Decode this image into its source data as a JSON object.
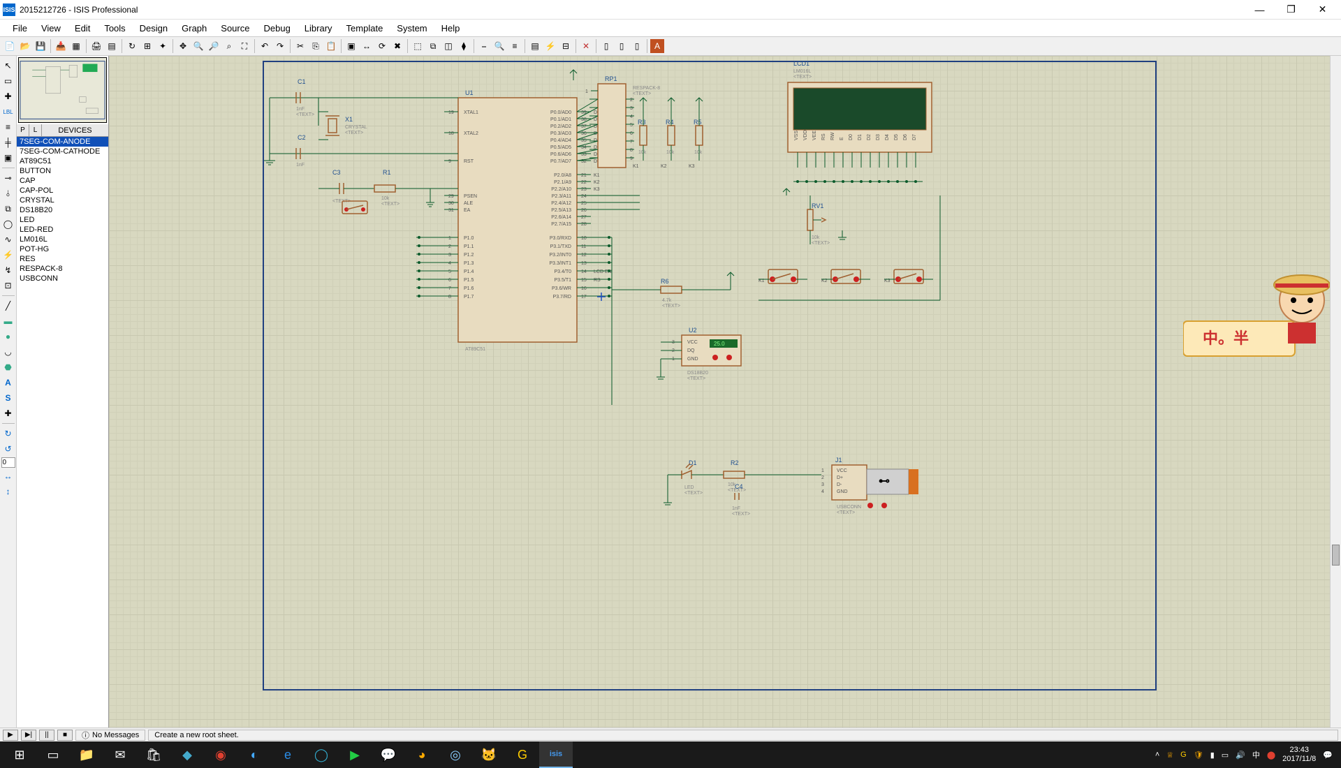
{
  "window": {
    "app_icon_text": "ISIS",
    "title": "2015212726 - ISIS Professional",
    "min": "—",
    "max": "❐",
    "close": "✕"
  },
  "menu": [
    "File",
    "View",
    "Edit",
    "Tools",
    "Design",
    "Graph",
    "Source",
    "Debug",
    "Library",
    "Template",
    "System",
    "Help"
  ],
  "devices_header": {
    "p": "P",
    "l": "L",
    "title": "DEVICES"
  },
  "devices": [
    "7SEG-COM-ANODE",
    "7SEG-COM-CATHODE",
    "AT89C51",
    "BUTTON",
    "CAP",
    "CAP-POL",
    "CRYSTAL",
    "DS18B20",
    "LED",
    "LED-RED",
    "LM016L",
    "POT-HG",
    "RES",
    "RESPACK-8",
    "USBCONN"
  ],
  "selected_device_index": 0,
  "left_input": "0",
  "status": {
    "messages": "No Messages",
    "hint": "Create a new root sheet."
  },
  "clock": {
    "time": "23:43",
    "date": "2017/11/8"
  },
  "watermark_text": "中。半",
  "schematic": {
    "components": {
      "U1": {
        "ref": "U1",
        "type": "AT89C51",
        "left_pins": [
          {
            "n": "19",
            "lbl": "XTAL1"
          },
          {
            "n": "18",
            "lbl": "XTAL2"
          },
          {
            "n": "9",
            "lbl": "RST"
          },
          {
            "n": "29",
            "lbl": "PSEN"
          },
          {
            "n": "30",
            "lbl": "ALE"
          },
          {
            "n": "31",
            "lbl": "EA"
          },
          {
            "n": "1",
            "lbl": "P1.0"
          },
          {
            "n": "2",
            "lbl": "P1.1"
          },
          {
            "n": "3",
            "lbl": "P1.2"
          },
          {
            "n": "4",
            "lbl": "P1.3"
          },
          {
            "n": "5",
            "lbl": "P1.4"
          },
          {
            "n": "6",
            "lbl": "P1.5"
          },
          {
            "n": "7",
            "lbl": "P1.6"
          },
          {
            "n": "8",
            "lbl": "P1.7"
          }
        ],
        "right_pins": [
          {
            "n": "39",
            "lbl": "P0.0/AD0",
            "net": "D0"
          },
          {
            "n": "38",
            "lbl": "P0.1/AD1",
            "net": "D1"
          },
          {
            "n": "37",
            "lbl": "P0.2/AD2",
            "net": "D2"
          },
          {
            "n": "36",
            "lbl": "P0.3/AD3",
            "net": "D3"
          },
          {
            "n": "35",
            "lbl": "P0.4/AD4",
            "net": "D4"
          },
          {
            "n": "34",
            "lbl": "P0.5/AD5",
            "net": "D5"
          },
          {
            "n": "33",
            "lbl": "P0.6/AD6",
            "net": "D6"
          },
          {
            "n": "32",
            "lbl": "P0.7/AD7",
            "net": "D7"
          },
          {
            "n": "21",
            "lbl": "P2.0/A8",
            "net": "K1"
          },
          {
            "n": "22",
            "lbl": "P2.1/A9",
            "net": "K2"
          },
          {
            "n": "23",
            "lbl": "P2.2/A10",
            "net": "K3"
          },
          {
            "n": "24",
            "lbl": "P2.3/A11"
          },
          {
            "n": "25",
            "lbl": "P2.4/A12"
          },
          {
            "n": "26",
            "lbl": "P2.5/A13"
          },
          {
            "n": "27",
            "lbl": "P2.6/A14"
          },
          {
            "n": "28",
            "lbl": "P2.7/A15"
          },
          {
            "n": "10",
            "lbl": "P3.0/RXD"
          },
          {
            "n": "11",
            "lbl": "P3.1/TXD"
          },
          {
            "n": "12",
            "lbl": "P3.2/INT0"
          },
          {
            "n": "13",
            "lbl": "P3.3/INT1"
          },
          {
            "n": "14",
            "lbl": "P3.4/T0",
            "net": "LCD EN"
          },
          {
            "n": "15",
            "lbl": "P3.5/T1",
            "net": "RS"
          },
          {
            "n": "16",
            "lbl": "P3.6/WR"
          },
          {
            "n": "17",
            "lbl": "P3.7/RD"
          }
        ]
      },
      "C1": {
        "ref": "C1",
        "val": "1nF",
        "text": "<TEXT>"
      },
      "C2": {
        "ref": "C2",
        "val": "1nF",
        "text": "<TEXT>"
      },
      "C3": {
        "ref": "C3",
        "val": "",
        "text": "<TEXT>"
      },
      "C4": {
        "ref": "C4",
        "val": "1nF",
        "text": "<TEXT>"
      },
      "X1": {
        "ref": "X1",
        "val": "CRYSTAL",
        "text": "<TEXT>"
      },
      "R1": {
        "ref": "R1",
        "val": "10k",
        "text": "<TEXT>"
      },
      "R2": {
        "ref": "R2",
        "val": "10k",
        "text": "<TEXT>"
      },
      "R3": {
        "ref": "R3",
        "val": "10k",
        "text": "<TEXT>"
      },
      "R4": {
        "ref": "R4",
        "val": "10k",
        "text": "<TEXT>"
      },
      "R5": {
        "ref": "R5",
        "val": "10k",
        "text": "<TEXT>"
      },
      "R6": {
        "ref": "R6",
        "val": "4.7k",
        "text": "<TEXT>"
      },
      "RP1": {
        "ref": "RP1",
        "val": "RESPACK-8",
        "text": "<TEXT>",
        "pins": [
          "1",
          "2",
          "3",
          "4",
          "5",
          "6",
          "7",
          "8",
          "9"
        ]
      },
      "RV1": {
        "ref": "RV1",
        "val": "10k",
        "text": "<TEXT>"
      },
      "D1": {
        "ref": "D1",
        "val": "LED",
        "text": "<TEXT>"
      },
      "LCD1": {
        "ref": "LCD1",
        "val": "LM016L",
        "text": "<TEXT>",
        "top_pins": [
          "VSS",
          "VDD",
          "VEE",
          "RS",
          "RW",
          "E",
          "D0",
          "D1",
          "D2",
          "D3",
          "D4",
          "D5",
          "D6",
          "D7"
        ]
      },
      "U2": {
        "ref": "U2",
        "val": "DS18B20",
        "text": "<TEXT>",
        "pins": [
          {
            "n": "3",
            "lbl": "VCC"
          },
          {
            "n": "2",
            "lbl": "DQ"
          },
          {
            "n": "1",
            "lbl": "GND"
          }
        ],
        "display": "25.0"
      },
      "J1": {
        "ref": "J1",
        "val": "USBCONN",
        "text": "<TEXT>",
        "pins": [
          {
            "n": "1",
            "lbl": "VCC"
          },
          {
            "n": "2",
            "lbl": "D+"
          },
          {
            "n": "3",
            "lbl": "D-"
          },
          {
            "n": "4",
            "lbl": "GND"
          }
        ]
      }
    },
    "buttons": [
      "K1",
      "K2",
      "K3"
    ],
    "colors": {
      "wire": "#0a5a2a",
      "component_outline": "#a06030",
      "component_fill": "#e8dcc0",
      "reference": "#205090",
      "pin_text": "#555555",
      "canvas_bg": "#d8d8c0",
      "grid_major": "#c8c8b0",
      "grid_minor": "#d0d0b8",
      "led_red": "#cc2020",
      "lcd_screen": "#1a4a2a",
      "sheet_border": "#204080",
      "usb_silver": "#d0d0d0",
      "usb_orange": "#d87020"
    }
  }
}
